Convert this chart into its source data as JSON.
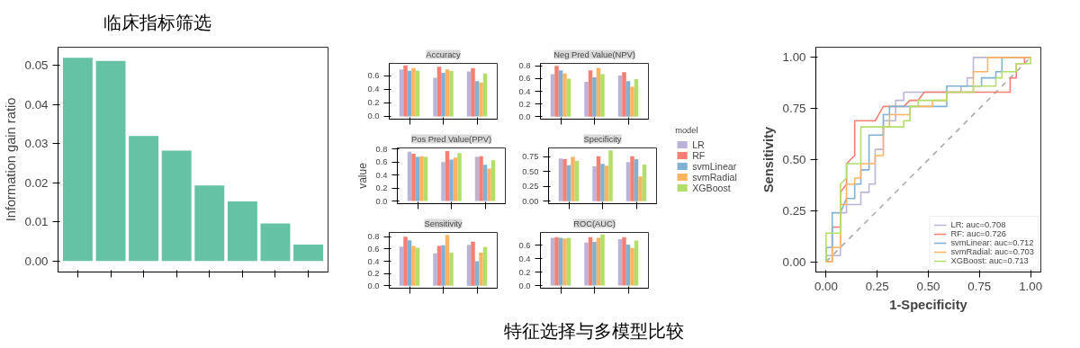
{
  "chart_data": [
    {
      "type": "bar",
      "title": "临床指标筛选",
      "annotations": [
        "特征选择与多模型比较"
      ],
      "ylabel": "Information gain ratio",
      "categories": [
        null,
        null,
        null,
        null,
        null,
        null,
        null,
        null
      ],
      "values": [
        0.0519,
        0.0511,
        0.0319,
        0.0282,
        0.0193,
        0.0152,
        0.0096,
        0.0042
      ],
      "color": "#66c2a5",
      "ylim": [
        -0.0028,
        0.0546
      ],
      "yticks": [
        {
          "value": 0,
          "label": "0.00"
        },
        {
          "value": 0.01,
          "label": "0.01"
        },
        {
          "value": 0.02,
          "label": "0.02"
        },
        {
          "value": 0.03,
          "label": "0.03"
        },
        {
          "value": 0.04,
          "label": "0.04"
        },
        {
          "value": 0.05,
          "label": "0.05"
        }
      ],
      "tick_labels": "y"
    },
    {
      "type": "bar",
      "title": "Accuracy",
      "categories": [
        null,
        null,
        null
      ],
      "tick_labels": "y",
      "ylim": [
        -0.04,
        0.78
      ],
      "yticks": [
        {
          "value": 0,
          "label": "0.0"
        },
        {
          "value": 0.2,
          "label": "0.2"
        },
        {
          "value": 0.4,
          "label": "0.4"
        },
        {
          "value": 0.6,
          "label": "0.6"
        }
      ],
      "series": [
        {
          "color": "#bcb4d8",
          "values": [
            0.69,
            0.57,
            0.66
          ]
        },
        {
          "color": "#f47f72",
          "values": [
            0.75,
            0.73,
            0.71
          ]
        },
        {
          "color": "#7fb1d3",
          "values": [
            0.67,
            0.64,
            0.52
          ]
        },
        {
          "color": "#fdb462",
          "values": [
            0.71,
            0.69,
            0.5
          ]
        },
        {
          "color": "#b3de69",
          "values": [
            0.67,
            0.67,
            0.63
          ]
        }
      ]
    },
    {
      "type": "bar",
      "title": "Neg Pred Value(NPV)",
      "categories": [
        null,
        null,
        null
      ],
      "tick_labels": "y",
      "ylim": [
        -0.04,
        0.84
      ],
      "yticks": [
        {
          "value": 0,
          "label": "0.0"
        },
        {
          "value": 0.2,
          "label": "0.2"
        },
        {
          "value": 0.4,
          "label": "0.4"
        },
        {
          "value": 0.6,
          "label": "0.6"
        },
        {
          "value": 0.8,
          "label": "0.8"
        }
      ],
      "series": [
        {
          "color": "#bcb4d8",
          "values": [
            0.67,
            0.55,
            0.65
          ]
        },
        {
          "color": "#f47f72",
          "values": [
            0.8,
            0.73,
            0.7
          ]
        },
        {
          "color": "#7fb1d3",
          "values": [
            0.73,
            0.62,
            0.56
          ]
        },
        {
          "color": "#fdb462",
          "values": [
            0.68,
            0.77,
            0.47
          ]
        },
        {
          "color": "#b3de69",
          "values": [
            0.6,
            0.67,
            0.59
          ]
        }
      ]
    },
    {
      "type": "bar",
      "title": "Pos Pred Value(PPV)",
      "ylabel": "value",
      "categories": [
        null,
        null,
        null
      ],
      "tick_labels": "y",
      "ylim": [
        -0.04,
        0.82
      ],
      "yticks": [
        {
          "value": 0,
          "label": "0.0"
        },
        {
          "value": 0.2,
          "label": "0.2"
        },
        {
          "value": 0.4,
          "label": "0.4"
        },
        {
          "value": 0.6,
          "label": "0.6"
        },
        {
          "value": 0.8,
          "label": "0.8"
        }
      ],
      "series": [
        {
          "color": "#bcb4d8",
          "values": [
            0.76,
            0.6,
            0.68
          ]
        },
        {
          "color": "#f47f72",
          "values": [
            0.73,
            0.77,
            0.69
          ]
        },
        {
          "color": "#7fb1d3",
          "values": [
            0.68,
            0.64,
            0.56
          ]
        },
        {
          "color": "#fdb462",
          "values": [
            0.69,
            0.67,
            0.5
          ]
        },
        {
          "color": "#b3de69",
          "values": [
            0.68,
            0.74,
            0.63
          ]
        }
      ]
    },
    {
      "type": "bar",
      "title": "Specificity",
      "legend": "right",
      "legend_title": "model",
      "categories": [
        null,
        null,
        null
      ],
      "tick_labels": "y",
      "ylim": [
        -0.04,
        0.9
      ],
      "yticks": [
        {
          "value": 0,
          "label": "0.00"
        },
        {
          "value": 0.25,
          "label": "0.25"
        },
        {
          "value": 0.5,
          "label": "0.50"
        },
        {
          "value": 0.75,
          "label": "0.75"
        }
      ],
      "series": [
        {
          "name": "LR",
          "color": "#bcb4d8",
          "values": [
            0.72,
            0.59,
            0.66
          ]
        },
        {
          "name": "RF",
          "color": "#f47f72",
          "values": [
            0.71,
            0.76,
            0.76
          ]
        },
        {
          "name": "svmLinear",
          "color": "#7fb1d3",
          "values": [
            0.61,
            0.63,
            0.71
          ]
        },
        {
          "name": "svmRadial",
          "color": "#fdb462",
          "values": [
            0.75,
            0.6,
            0.42
          ]
        },
        {
          "name": "XGBoost",
          "color": "#b3de69",
          "values": [
            0.68,
            0.86,
            0.62
          ]
        }
      ]
    },
    {
      "type": "bar",
      "title": "Sensitivity",
      "categories": [
        null,
        null,
        null
      ],
      "tick_labels": "y",
      "ylim": [
        -0.04,
        0.87
      ],
      "yticks": [
        {
          "value": 0,
          "label": "0.0"
        },
        {
          "value": 0.2,
          "label": "0.2"
        },
        {
          "value": 0.4,
          "label": "0.4"
        },
        {
          "value": 0.6,
          "label": "0.6"
        },
        {
          "value": 0.8,
          "label": "0.8"
        }
      ],
      "series": [
        {
          "color": "#bcb4d8",
          "values": [
            0.64,
            0.53,
            0.67
          ]
        },
        {
          "color": "#f47f72",
          "values": [
            0.8,
            0.65,
            0.72
          ]
        },
        {
          "color": "#7fb1d3",
          "values": [
            0.74,
            0.66,
            0.4
          ]
        },
        {
          "color": "#fdb462",
          "values": [
            0.65,
            0.83,
            0.54
          ]
        },
        {
          "color": "#b3de69",
          "values": [
            0.62,
            0.54,
            0.63
          ]
        }
      ]
    },
    {
      "type": "bar",
      "title": "ROC(AUC)",
      "categories": [
        null,
        null,
        null
      ],
      "tick_labels": "y",
      "ylim": [
        -0.04,
        0.79
      ],
      "yticks": [
        {
          "value": 0,
          "label": "0.0"
        },
        {
          "value": 0.2,
          "label": "0.2"
        },
        {
          "value": 0.4,
          "label": "0.4"
        },
        {
          "value": 0.6,
          "label": "0.6"
        }
      ],
      "series": [
        {
          "color": "#bcb4d8",
          "values": [
            0.71,
            0.64,
            0.69
          ]
        },
        {
          "color": "#f47f72",
          "values": [
            0.72,
            0.72,
            0.72
          ]
        },
        {
          "color": "#7fb1d3",
          "values": [
            0.71,
            0.65,
            0.61
          ]
        },
        {
          "color": "#fdb462",
          "values": [
            0.7,
            0.71,
            0.56
          ]
        },
        {
          "color": "#b3de69",
          "values": [
            0.71,
            0.76,
            0.67
          ]
        }
      ]
    },
    {
      "type": "line",
      "xlabel": "1-Specificity",
      "ylabel": "Sensitivity",
      "legend": "bottom right",
      "xlim": [
        -0.05,
        1.05
      ],
      "ylim": [
        -0.05,
        1.05
      ],
      "xticks": [
        {
          "value": 0,
          "label": "0.00"
        },
        {
          "value": 0.25,
          "label": "0.25"
        },
        {
          "value": 0.5,
          "label": "0.50"
        },
        {
          "value": 0.75,
          "label": "0.75"
        },
        {
          "value": 1,
          "label": "1.00"
        }
      ],
      "yticks": [
        {
          "value": 0,
          "label": "0.00"
        },
        {
          "value": 0.25,
          "label": "0.25"
        },
        {
          "value": 0.5,
          "label": "0.50"
        },
        {
          "value": 0.75,
          "label": "0.75"
        },
        {
          "value": 1,
          "label": "1.00"
        }
      ],
      "series": [
        {
          "color": "#aaaaaa",
          "line_style": "dashed",
          "x": [
            0,
            1
          ],
          "values": [
            0,
            1
          ]
        },
        {
          "name": "LR: auc=0.708",
          "color": "#bcb4d8",
          "x": [
            0,
            0,
            0.07,
            0.07,
            0.1,
            0.1,
            0.17,
            0.17,
            0.21,
            0.21,
            0.24,
            0.24,
            0.28,
            0.28,
            0.34,
            0.34,
            0.38,
            0.38,
            0.66,
            0.66,
            0.69,
            0.69,
            0.72,
            0.72,
            1
          ],
          "values": [
            0,
            0.03,
            0.03,
            0.24,
            0.24,
            0.28,
            0.28,
            0.34,
            0.34,
            0.38,
            0.38,
            0.55,
            0.55,
            0.69,
            0.69,
            0.79,
            0.79,
            0.83,
            0.83,
            0.86,
            0.86,
            0.9,
            0.9,
            1,
            1
          ]
        },
        {
          "name": "RF: auc=0.726",
          "color": "#f47f72",
          "x": [
            0,
            0.03,
            0.03,
            0.07,
            0.07,
            0.1,
            0.1,
            0.14,
            0.14,
            0.24,
            0.28,
            0.38,
            0.41,
            0.45,
            0.48,
            0.9,
            0.9,
            0.93,
            0.93,
            0.97,
            0.97,
            1
          ],
          "values": [
            0,
            0,
            0.17,
            0.17,
            0.34,
            0.38,
            0.48,
            0.52,
            0.69,
            0.69,
            0.76,
            0.76,
            0.79,
            0.79,
            0.83,
            0.83,
            0.9,
            0.9,
            0.97,
            0.97,
            1,
            1
          ]
        },
        {
          "name": "svmLinear: auc=0.712",
          "color": "#7fb1d3",
          "x": [
            0,
            0,
            0.03,
            0.03,
            0.07,
            0.1,
            0.14,
            0.14,
            0.17,
            0.17,
            0.21,
            0.21,
            0.28,
            0.28,
            0.31,
            0.31,
            0.59,
            0.59,
            0.76,
            0.76,
            0.83,
            0.83,
            0.86,
            0.86,
            1
          ],
          "values": [
            0,
            0.07,
            0.07,
            0.24,
            0.24,
            0.31,
            0.31,
            0.38,
            0.38,
            0.45,
            0.45,
            0.62,
            0.62,
            0.72,
            0.72,
            0.76,
            0.76,
            0.86,
            0.86,
            0.9,
            0.9,
            0.93,
            0.93,
            1,
            1
          ]
        },
        {
          "name": "svmRadial: auc=0.703",
          "color": "#fdb462",
          "x": [
            0,
            0.03,
            0.03,
            0.07,
            0.07,
            0.1,
            0.1,
            0.14,
            0.14,
            0.17,
            0.17,
            0.24,
            0.24,
            0.28,
            0.28,
            0.31,
            0.31,
            0.41,
            0.41,
            0.52,
            0.52,
            0.59,
            0.59,
            0.72,
            0.72,
            0.79,
            0.79,
            1
          ],
          "values": [
            0,
            0,
            0.07,
            0.07,
            0.28,
            0.28,
            0.38,
            0.38,
            0.41,
            0.41,
            0.48,
            0.48,
            0.52,
            0.52,
            0.66,
            0.66,
            0.72,
            0.72,
            0.76,
            0.76,
            0.79,
            0.79,
            0.83,
            0.83,
            0.93,
            0.93,
            1,
            1
          ]
        },
        {
          "name": "XGBoost: auc=0.713",
          "color": "#b3de69",
          "x": [
            0,
            0,
            0.07,
            0.07,
            0.1,
            0.1,
            0.17,
            0.17,
            0.38,
            0.38,
            0.41,
            0.41,
            0.45,
            0.45,
            0.59,
            0.59,
            0.72,
            0.72,
            0.83,
            0.83,
            0.86,
            0.86,
            0.93,
            0.93,
            1,
            1
          ],
          "values": [
            0,
            0.14,
            0.14,
            0.38,
            0.41,
            0.48,
            0.48,
            0.66,
            0.66,
            0.69,
            0.69,
            0.76,
            0.76,
            0.79,
            0.79,
            0.83,
            0.83,
            0.86,
            0.86,
            0.9,
            0.9,
            0.93,
            0.93,
            0.97,
            0.97,
            1
          ]
        }
      ]
    }
  ]
}
